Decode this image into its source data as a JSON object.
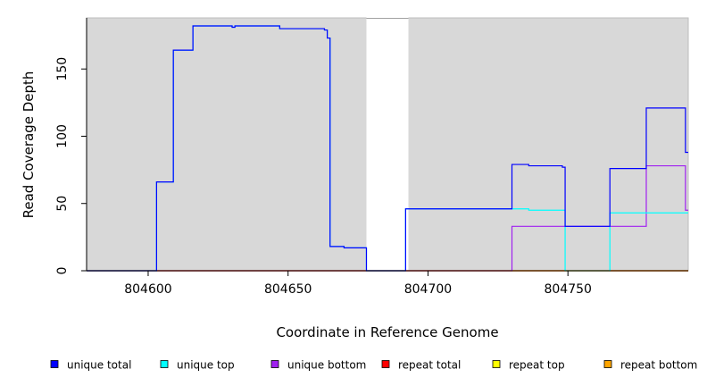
{
  "chart_data": {
    "type": "line",
    "title": "",
    "xlabel": "Coordinate in Reference Genome",
    "ylabel": "Read Coverage Depth",
    "xlim": [
      804578,
      804793
    ],
    "ylim": [
      0,
      188
    ],
    "x_ticks": [
      804600,
      804650,
      804700,
      804750
    ],
    "y_ticks": [
      0,
      50,
      100,
      150
    ],
    "grid": false,
    "background_color": "#d8d8d8",
    "unshaded_regions": [
      [
        804678,
        804693
      ]
    ],
    "legend_position": "bottom",
    "series": [
      {
        "name": "unique total",
        "color": "#0000ff",
        "x": [
          804578,
          804603,
          804609,
          804616,
          804630,
          804631,
          804647,
          804663,
          804664,
          804665,
          804670,
          804678,
          804692,
          804730,
          804736,
          804748,
          804749,
          804765,
          804778,
          804792,
          804793
        ],
        "y": [
          0,
          66,
          164,
          182,
          181,
          182,
          180,
          179,
          173,
          18,
          17,
          0,
          46,
          79,
          78,
          77,
          33,
          76,
          121,
          88,
          88
        ]
      },
      {
        "name": "unique top",
        "color": "#00ffff",
        "x": [
          804578,
          804603,
          804609,
          804616,
          804630,
          804631,
          804647,
          804663,
          804664,
          804665,
          804670,
          804678,
          804692,
          804730,
          804736,
          804749,
          804765,
          804793
        ],
        "y": [
          0,
          66,
          164,
          182,
          181,
          182,
          180,
          179,
          173,
          18,
          17,
          0,
          46,
          46,
          45,
          0,
          43,
          43
        ]
      },
      {
        "name": "unique bottom",
        "color": "#a020f0",
        "x": [
          804578,
          804730,
          804778,
          804792,
          804793
        ],
        "y": [
          0,
          33,
          78,
          45,
          45
        ]
      },
      {
        "name": "repeat total",
        "color": "#ff0000",
        "x": [
          804578,
          804793
        ],
        "y": [
          0,
          0
        ]
      },
      {
        "name": "repeat top",
        "color": "#ffff00",
        "x": [
          804578,
          804793
        ],
        "y": [
          0,
          0
        ]
      },
      {
        "name": "repeat bottom",
        "color": "#ffa500",
        "x": [
          804578,
          804793
        ],
        "y": [
          0,
          0
        ]
      }
    ]
  }
}
